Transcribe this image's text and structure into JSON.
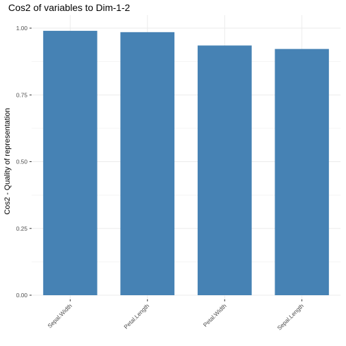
{
  "chart_data": {
    "type": "bar",
    "title": "Cos2 of variables to Dim-1-2",
    "xlabel": "",
    "ylabel": "Cos2 - Quality of representation",
    "categories": [
      "Sepal.Width",
      "Petal.Length",
      "Petal.Width",
      "Sepal.Length"
    ],
    "values": [
      0.99,
      0.985,
      0.935,
      0.922
    ],
    "ylim": [
      0,
      1.0
    ],
    "yticks": [
      "0.00",
      "0.25",
      "0.50",
      "0.75",
      "1.00"
    ],
    "grid": true,
    "legend": "none",
    "colors": {
      "bar": "#4682B4",
      "grid": "#ebebeb",
      "tick_text": "#4d4d4d"
    }
  }
}
